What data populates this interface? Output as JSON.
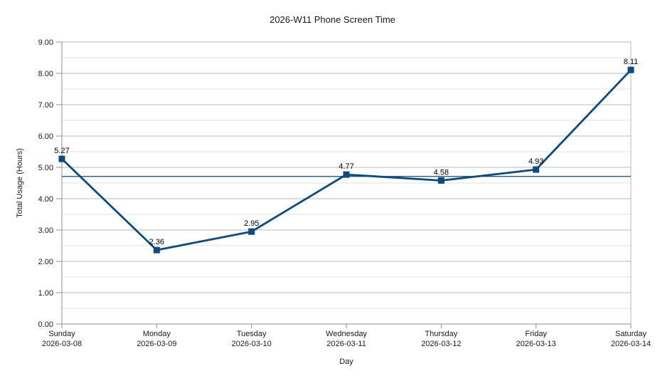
{
  "chart_data": {
    "type": "line",
    "title": "2026-W11 Phone Screen Time",
    "xlabel": "Day",
    "ylabel": "Total Usage (Hours)",
    "categories": [
      {
        "day": "Sunday",
        "date": "2026-03-08"
      },
      {
        "day": "Monday",
        "date": "2026-03-09"
      },
      {
        "day": "Tuesday",
        "date": "2026-03-10"
      },
      {
        "day": "Wednesday",
        "date": "2026-03-11"
      },
      {
        "day": "Thursday",
        "date": "2026-03-12"
      },
      {
        "day": "Friday",
        "date": "2026-03-13"
      },
      {
        "day": "Saturday",
        "date": "2026-03-14"
      }
    ],
    "series": [
      {
        "name": "Total Usage",
        "values": [
          5.27,
          2.36,
          2.95,
          4.77,
          4.58,
          4.93,
          8.11
        ]
      }
    ],
    "data_labels": [
      "5.27",
      "2.36",
      "2.95",
      "4.77",
      "4.58",
      "4.93",
      "8.11"
    ],
    "average_line_value": 4.71,
    "ylim": [
      0,
      9
    ],
    "y_major_step": 1,
    "y_minor_step": 0.5,
    "y_tick_decimals": 2,
    "grid": "horizontal major + minor",
    "legend_position": "none",
    "marker": "square",
    "colors": {
      "series": "#0f4a7d",
      "average_line": "#0f4a7d",
      "grid_major": "#b9b9b9",
      "grid_minor": "#e0e0e0",
      "axis": "#8f8f8f",
      "text": "#1a1a1a",
      "background": "#ffffff"
    }
  }
}
